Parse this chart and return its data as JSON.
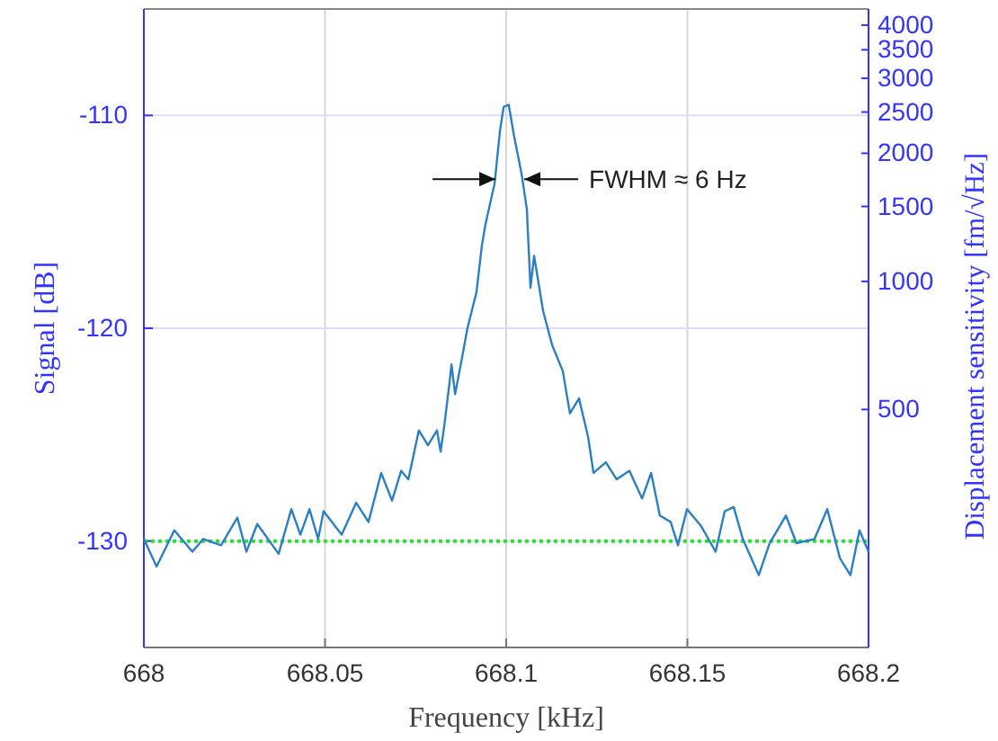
{
  "chart_data": {
    "type": "line",
    "xlabel": "Frequency [kHz]",
    "ylabel": "Signal [dB]",
    "y2label": "Displacement sensitivity [fm/√Hz]",
    "xlim": [
      668,
      668.2
    ],
    "xticks": [
      668,
      668.05,
      668.1,
      668.15,
      668.2
    ],
    "ylim": [
      -135,
      -105
    ],
    "yticks": [
      -130,
      -120,
      -110
    ],
    "y2lim": [
      138,
      4365
    ],
    "y2ticks": [
      500,
      1000,
      1500,
      2000,
      2500,
      3000,
      3500,
      4000
    ],
    "log": "y2",
    "grid": true,
    "marker": "none",
    "line_style": "solid",
    "ref_lines": [
      {
        "axis": "y",
        "value": -130,
        "color": "#33dd33",
        "line_style": "dotted"
      }
    ],
    "annotations": [
      {
        "text": "FWHM ≈ 6 Hz",
        "x": 668.103,
        "y": -113
      }
    ],
    "series": [
      {
        "color": "#2b80c2",
        "x": [
          668.0,
          668.0035,
          668.0084,
          668.0134,
          668.0164,
          668.0213,
          668.0258,
          668.0283,
          668.0313,
          668.0372,
          668.0407,
          668.0432,
          668.0457,
          668.0481,
          668.0496,
          668.0546,
          668.0586,
          668.062,
          668.0655,
          668.0685,
          668.071,
          668.073,
          668.0759,
          668.0784,
          668.0809,
          668.0819,
          668.0829,
          668.0844,
          668.0849,
          668.0859,
          668.0878,
          668.0893,
          668.0918,
          668.0933,
          668.0943,
          668.0968,
          668.0983,
          668.0993,
          668.1007,
          668.1022,
          668.1042,
          668.1057,
          668.1067,
          668.1077,
          668.1102,
          668.1127,
          668.1156,
          668.1176,
          668.1201,
          668.1226,
          668.1241,
          668.1275,
          668.1305,
          668.134,
          668.1375,
          668.14,
          668.1424,
          668.1454,
          668.1474,
          668.1499,
          668.1538,
          668.1578,
          668.1603,
          668.1628,
          668.1653,
          668.1697,
          668.1727,
          668.1772,
          668.1801,
          668.1851,
          668.1886,
          668.1921,
          668.195,
          668.1975,
          668.2
        ],
        "values": [
          -129.9,
          -131.2,
          -129.5,
          -130.5,
          -129.9,
          -130.2,
          -128.9,
          -130.5,
          -129.2,
          -130.6,
          -128.5,
          -129.7,
          -128.5,
          -129.9,
          -128.6,
          -129.7,
          -128.2,
          -129.1,
          -126.8,
          -128.1,
          -126.7,
          -127.1,
          -124.8,
          -125.5,
          -124.8,
          -125.8,
          -124.6,
          -122.5,
          -121.7,
          -123.1,
          -121.4,
          -120.0,
          -118.3,
          -116.1,
          -115.1,
          -113.2,
          -110.7,
          -109.6,
          -109.5,
          -111.0,
          -112.7,
          -114.4,
          -118.1,
          -116.6,
          -119.2,
          -120.8,
          -122.0,
          -124.0,
          -123.3,
          -125.1,
          -126.8,
          -126.3,
          -127.1,
          -126.7,
          -128.0,
          -126.8,
          -128.8,
          -129.1,
          -130.2,
          -128.5,
          -129.3,
          -130.5,
          -128.6,
          -128.4,
          -129.9,
          -131.6,
          -130.1,
          -128.8,
          -130.1,
          -129.9,
          -128.5,
          -130.8,
          -131.6,
          -129.5,
          -130.5
        ]
      }
    ]
  }
}
